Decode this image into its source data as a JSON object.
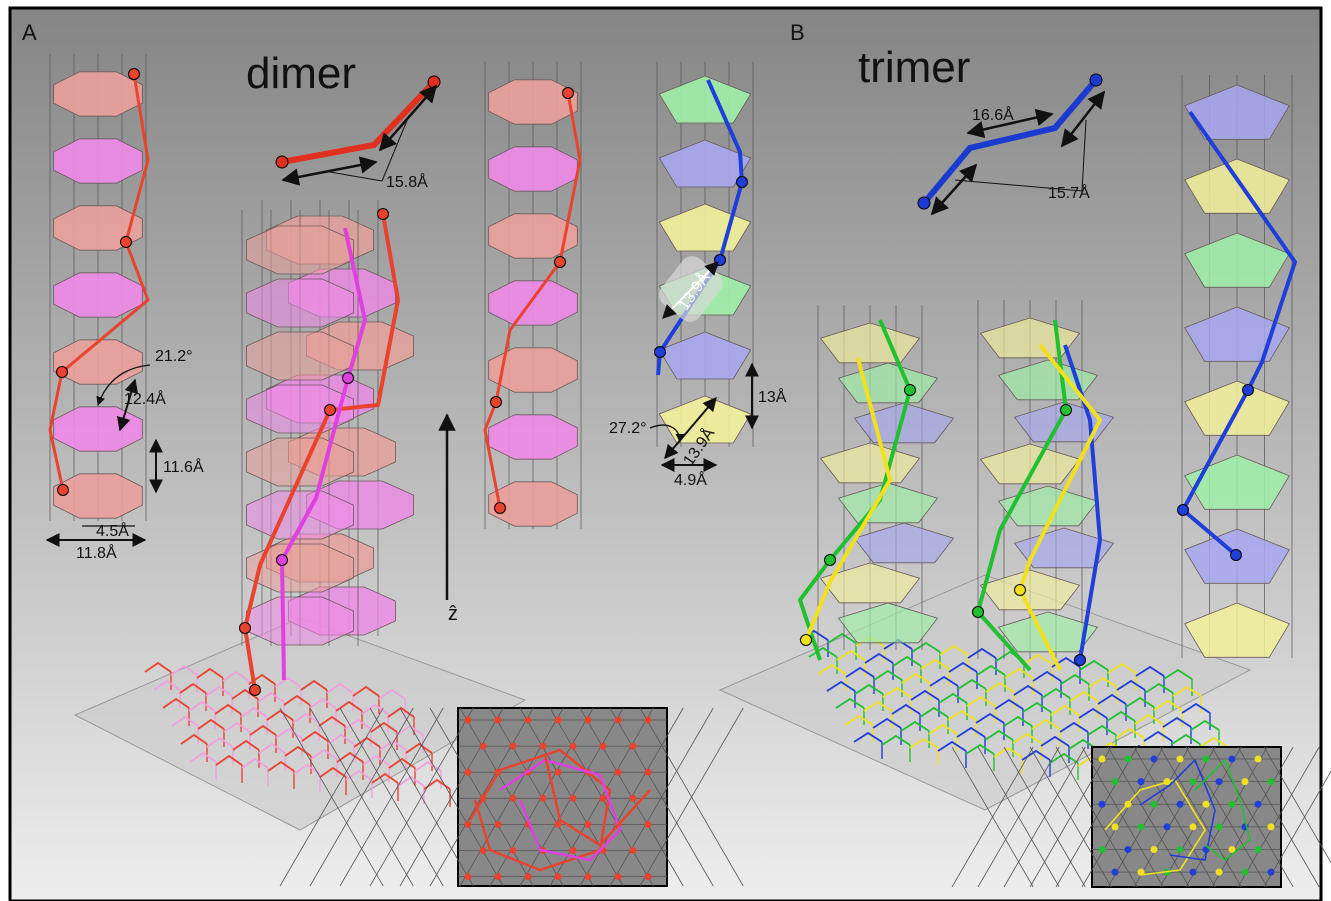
{
  "panels": {
    "a": {
      "letter": "A",
      "title": "dimer"
    },
    "b": {
      "letter": "B",
      "title": "trimer"
    }
  },
  "annotations": {
    "dimer_link_length": "15.8Å",
    "dimer_angle": "21.2°",
    "dimer_rise_per_step": "12.4Å",
    "dimer_layer_spacing": "11.6Å",
    "dimer_inner_width": "4.5Å",
    "dimer_outer_width": "11.8Å",
    "axis_label": "ẑ",
    "trimer_link_short": "16.6Å",
    "trimer_link_long": "15.7Å",
    "trimer_diagonal": "13.9Å",
    "trimer_diagonal_lower": "13.9Å",
    "trimer_layer_spacing": "13Å",
    "trimer_angle": "27.2°",
    "trimer_width": "4.9Å"
  },
  "colors": {
    "dimer_red": "#e8432e",
    "dimer_magenta": "#e040e0",
    "octagon_salmon": "#e9a09a",
    "octagon_pink": "#ee8ae6",
    "trimer_blue": "#1f3fd8",
    "trimer_green": "#22c030",
    "trimer_yellow": "#f0e020",
    "pentagon_blue": "#a7a7f0",
    "pentagon_green": "#9ef0a8",
    "pentagon_yellow": "#f2f099"
  }
}
